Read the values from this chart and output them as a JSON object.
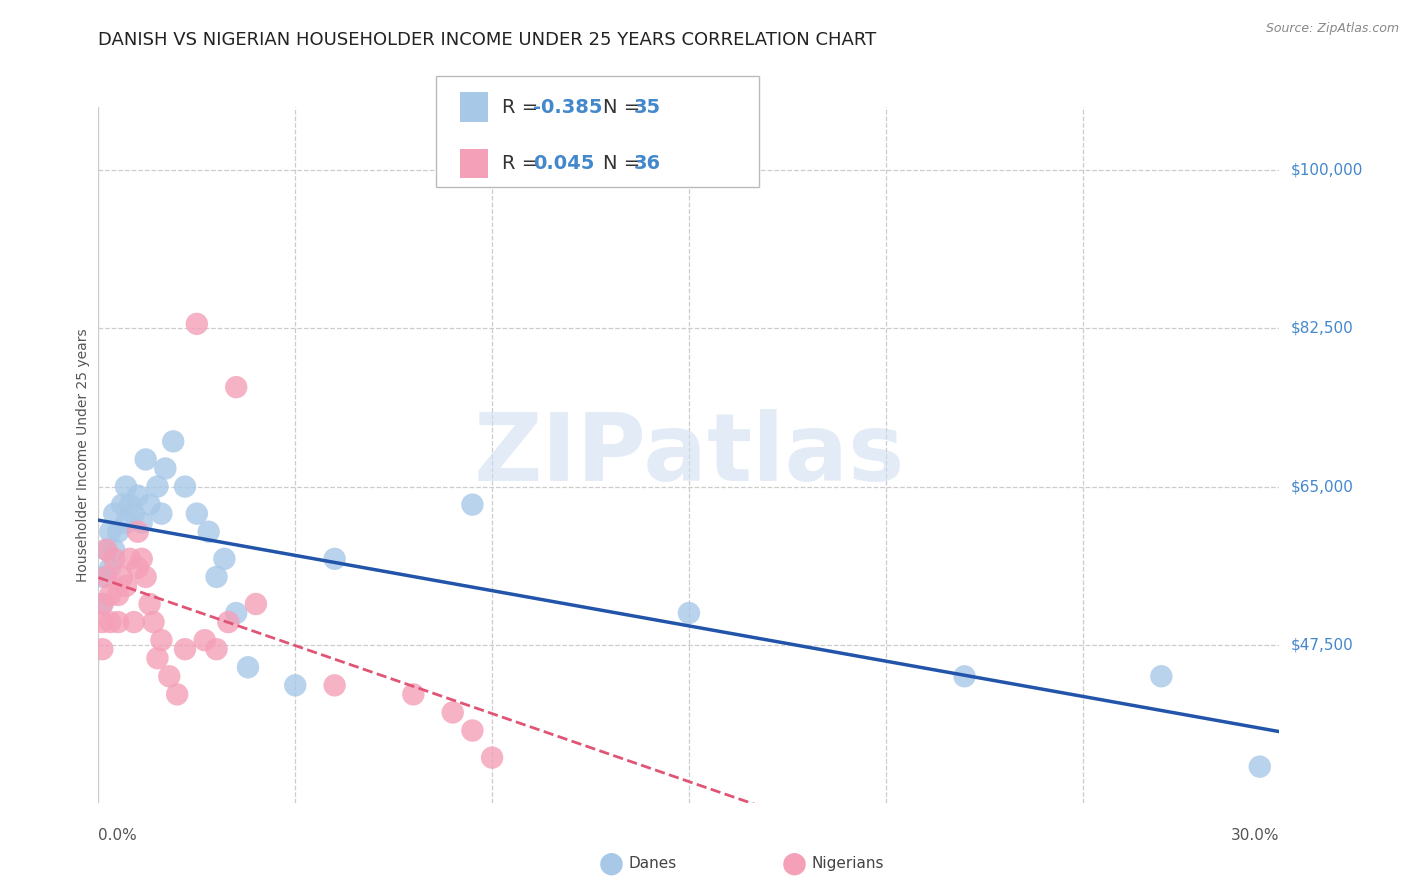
{
  "title": "DANISH VS NIGERIAN HOUSEHOLDER INCOME UNDER 25 YEARS CORRELATION CHART",
  "source": "Source: ZipAtlas.com",
  "ylabel": "Householder Income Under 25 years",
  "xlim": [
    0.0,
    0.3
  ],
  "ylim": [
    30000,
    107000
  ],
  "yticks": [
    47500,
    65000,
    82500,
    100000
  ],
  "ytick_labels": [
    "$47,500",
    "$65,000",
    "$82,500",
    "$100,000"
  ],
  "background_color": "#ffffff",
  "grid_color": "#cccccc",
  "danes_color": "#a8c8e8",
  "nigerians_color": "#f4a0b8",
  "danes_line_color": "#2255aa",
  "nigerians_line_color": "#e05575",
  "danes_x": [
    0.001,
    0.001,
    0.002,
    0.003,
    0.003,
    0.004,
    0.004,
    0.005,
    0.006,
    0.007,
    0.007,
    0.008,
    0.009,
    0.01,
    0.011,
    0.012,
    0.013,
    0.015,
    0.016,
    0.017,
    0.019,
    0.022,
    0.025,
    0.028,
    0.03,
    0.032,
    0.035,
    0.038,
    0.05,
    0.06,
    0.095,
    0.15,
    0.22,
    0.27,
    0.295
  ],
  "danes_y": [
    52000,
    55000,
    58000,
    56000,
    60000,
    58000,
    62000,
    60000,
    63000,
    61000,
    65000,
    63000,
    62000,
    64000,
    61000,
    68000,
    63000,
    65000,
    62000,
    67000,
    70000,
    65000,
    62000,
    60000,
    55000,
    57000,
    51000,
    45000,
    43000,
    57000,
    63000,
    51000,
    44000,
    44000,
    34000
  ],
  "nigerians_x": [
    0.001,
    0.001,
    0.001,
    0.002,
    0.002,
    0.003,
    0.003,
    0.004,
    0.005,
    0.005,
    0.006,
    0.007,
    0.008,
    0.009,
    0.01,
    0.01,
    0.011,
    0.012,
    0.013,
    0.014,
    0.015,
    0.016,
    0.018,
    0.02,
    0.022,
    0.025,
    0.027,
    0.03,
    0.033,
    0.035,
    0.04,
    0.06,
    0.08,
    0.09,
    0.095,
    0.1
  ],
  "nigerians_y": [
    47000,
    50000,
    52000,
    55000,
    58000,
    50000,
    53000,
    57000,
    50000,
    53000,
    55000,
    54000,
    57000,
    50000,
    60000,
    56000,
    57000,
    55000,
    52000,
    50000,
    46000,
    48000,
    44000,
    42000,
    47000,
    83000,
    48000,
    47000,
    50000,
    76000,
    52000,
    43000,
    42000,
    40000,
    38000,
    35000
  ],
  "watermark_text": "ZIPatlas",
  "title_fontsize": 13,
  "axis_label_fontsize": 10,
  "tick_fontsize": 11,
  "legend_fontsize": 14
}
